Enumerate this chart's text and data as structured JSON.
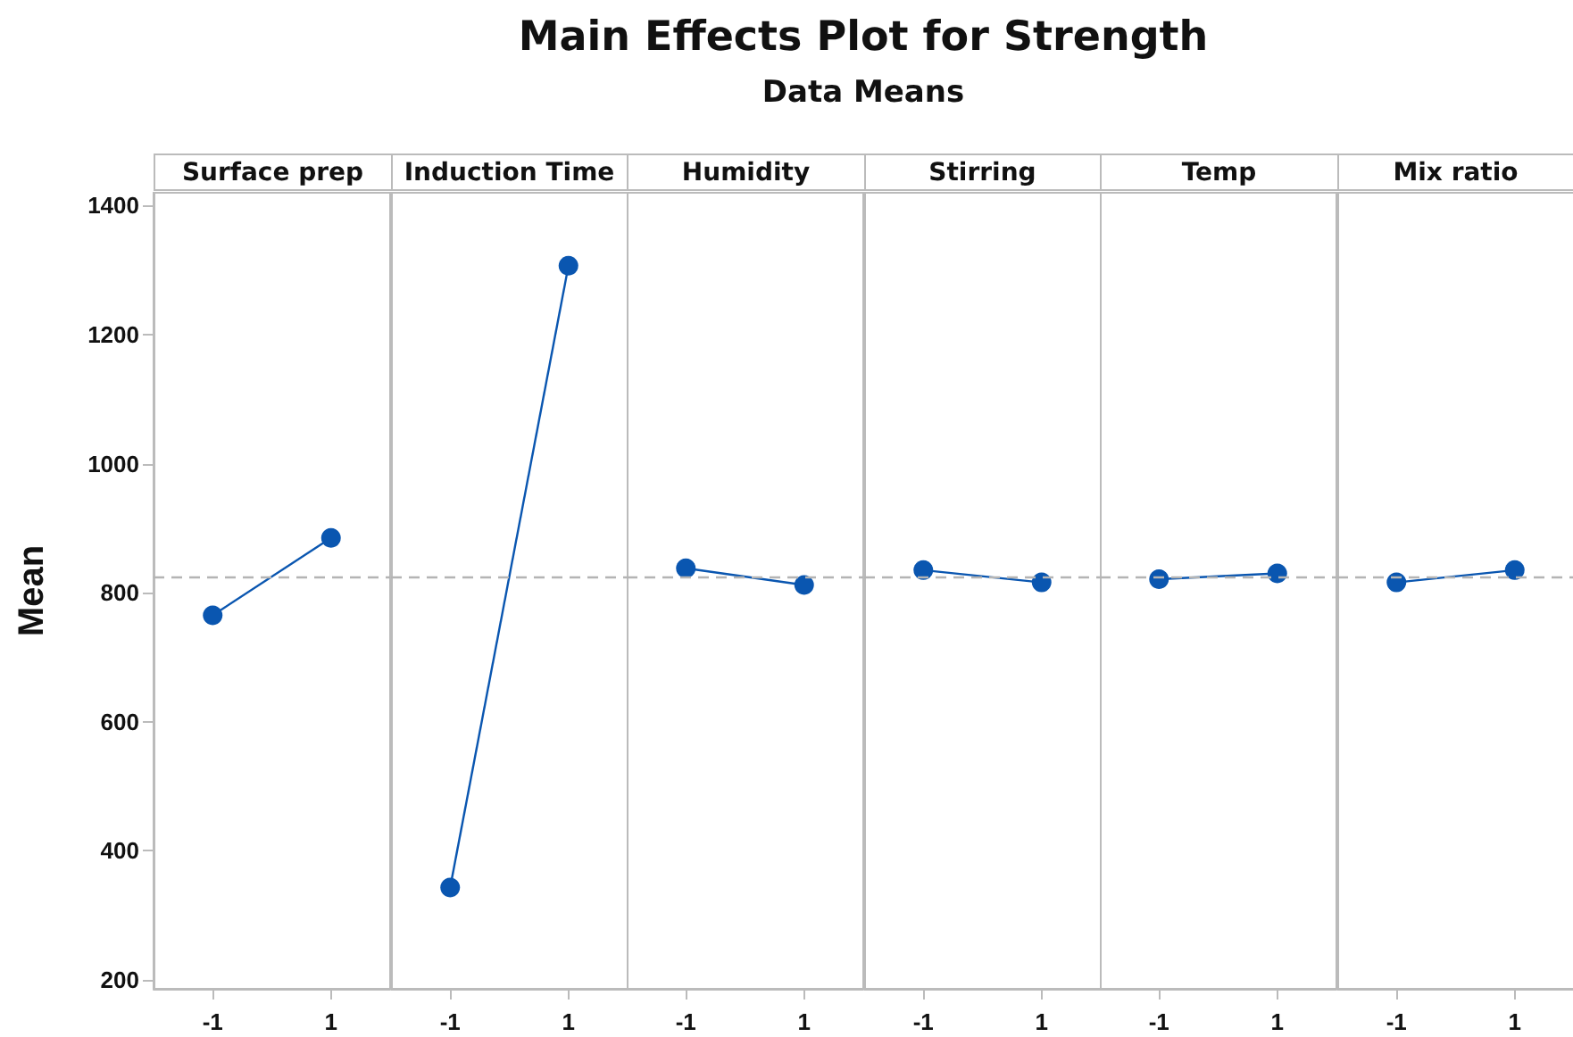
{
  "chart_data": [
    {
      "type": "line",
      "title": "Surface prep",
      "annotations": [
        "Main Effects Plot for Strength",
        "Data Means"
      ],
      "ylabel": "Mean",
      "categories": [
        "-1",
        "1"
      ],
      "values": [
        765,
        885
      ],
      "color": "#0a56b0",
      "marker": "circle",
      "ylim": [
        186,
        1420
      ],
      "yticks": [
        200,
        400,
        600,
        800,
        1000,
        1200,
        1400
      ],
      "ref_lines": [
        {
          "axis": "y",
          "value": 824,
          "color": "#b4b4b4",
          "line_style": "dashed"
        }
      ]
    },
    {
      "type": "line",
      "title": "Induction Time",
      "categories": [
        "-1",
        "1"
      ],
      "values": [
        343,
        1307
      ],
      "color": "#0a56b0",
      "marker": "circle",
      "ylim": [
        186,
        1420
      ],
      "yticks": [
        200,
        400,
        600,
        800,
        1000,
        1200,
        1400
      ],
      "tick_labels": "x",
      "ref_lines": [
        {
          "axis": "y",
          "value": 824,
          "color": "#b4b4b4",
          "line_style": "dashed"
        }
      ]
    },
    {
      "type": "line",
      "title": "Humidity",
      "categories": [
        "-1",
        "1"
      ],
      "values": [
        838,
        812
      ],
      "color": "#0a56b0",
      "marker": "circle",
      "ylim": [
        186,
        1420
      ],
      "yticks": [
        200,
        400,
        600,
        800,
        1000,
        1200,
        1400
      ],
      "tick_labels": "x",
      "ref_lines": [
        {
          "axis": "y",
          "value": 824,
          "color": "#b4b4b4",
          "line_style": "dashed"
        }
      ]
    },
    {
      "type": "line",
      "title": "Stirring",
      "categories": [
        "-1",
        "1"
      ],
      "values": [
        835,
        816
      ],
      "color": "#0a56b0",
      "marker": "circle",
      "ylim": [
        186,
        1420
      ],
      "yticks": [
        200,
        400,
        600,
        800,
        1000,
        1200,
        1400
      ],
      "tick_labels": "x",
      "ref_lines": [
        {
          "axis": "y",
          "value": 824,
          "color": "#b4b4b4",
          "line_style": "dashed"
        }
      ]
    },
    {
      "type": "line",
      "title": "Temp",
      "categories": [
        "-1",
        "1"
      ],
      "values": [
        821,
        830
      ],
      "color": "#0a56b0",
      "marker": "circle",
      "ylim": [
        186,
        1420
      ],
      "yticks": [
        200,
        400,
        600,
        800,
        1000,
        1200,
        1400
      ],
      "tick_labels": "x",
      "ref_lines": [
        {
          "axis": "y",
          "value": 824,
          "color": "#b4b4b4",
          "line_style": "dashed"
        }
      ]
    },
    {
      "type": "line",
      "title": "Mix ratio",
      "categories": [
        "-1",
        "1"
      ],
      "values": [
        816,
        835
      ],
      "color": "#0a56b0",
      "marker": "circle",
      "ylim": [
        186,
        1420
      ],
      "yticks": [
        200,
        400,
        600,
        800,
        1000,
        1200,
        1400
      ],
      "tick_labels": "x",
      "ref_lines": [
        {
          "axis": "y",
          "value": 824,
          "color": "#b4b4b4",
          "line_style": "dashed"
        }
      ]
    }
  ]
}
